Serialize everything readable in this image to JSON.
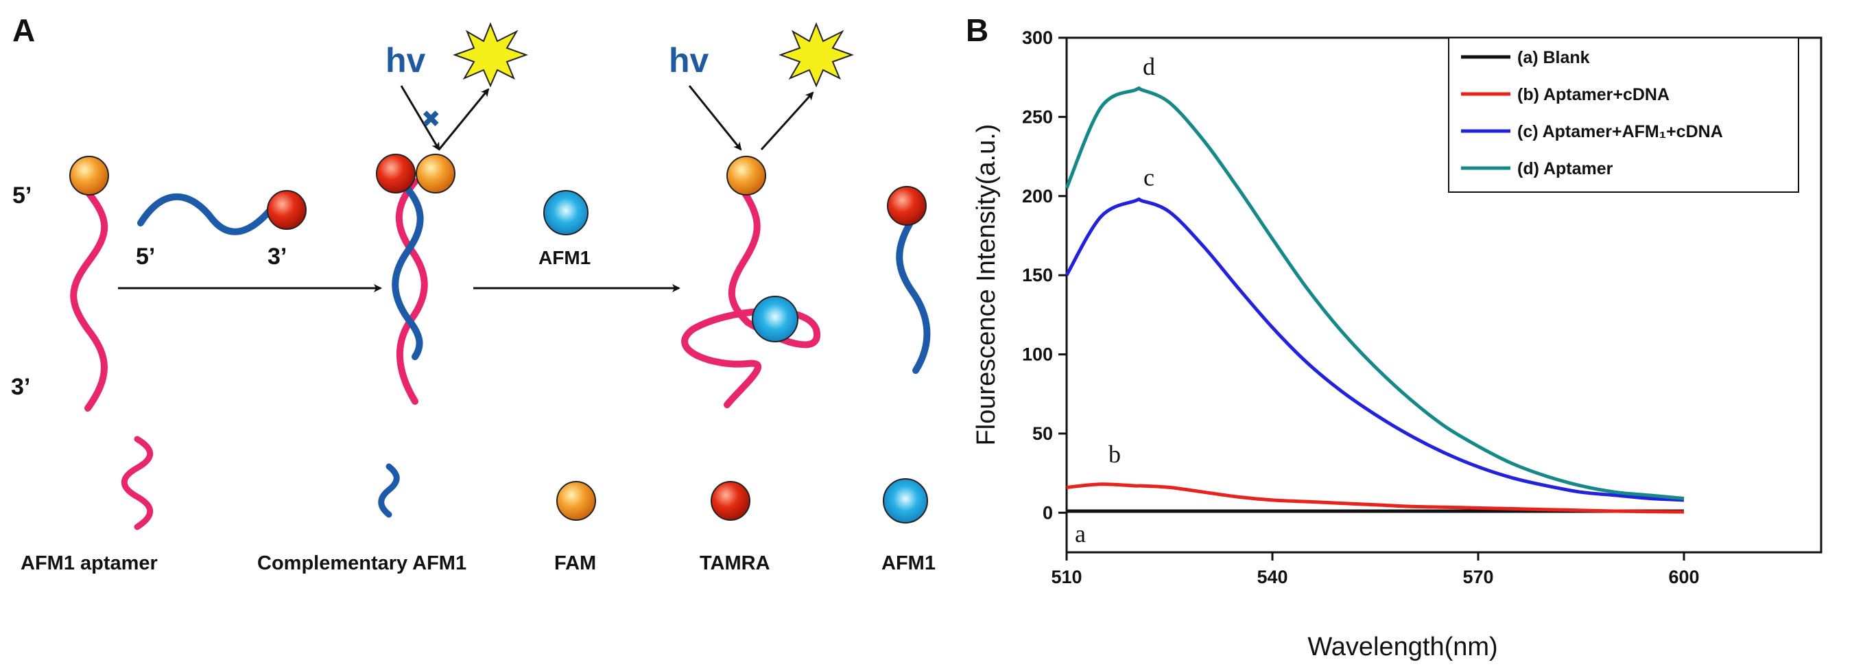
{
  "colors": {
    "aptamer": "#e8266b",
    "cdna": "#1d5aa8",
    "fam": "#f5a030",
    "tamra": "#e42d14",
    "afm1": "#20a4dc",
    "starburst": "#f5f01a",
    "hv": "#1f5a9e"
  },
  "panel_a": {
    "letter": "A",
    "hv_label": "hv",
    "blocked_mark": "✖",
    "step1": {
      "five_prime": "5’",
      "three_prime": "3’"
    },
    "cdna_labels": {
      "five_prime": "5’",
      "three_prime": "3’"
    },
    "arrow2_label": "AFM1",
    "legend": {
      "aptamer_label": "AFM1 aptamer",
      "complementary_label": "Complementary AFM1",
      "fam_label": "FAM",
      "tamra_label": "TAMRA",
      "afm1_label": "AFM1"
    }
  },
  "chart_data": {
    "type": "line",
    "panel_letter": "B",
    "xlabel": "Wavelength(nm)",
    "ylabel": "Flourescence Intensity(a.u.)",
    "xlim": [
      510,
      620
    ],
    "ylim": [
      -25,
      300
    ],
    "xticks": [
      510,
      540,
      570,
      600
    ],
    "yticks": [
      0,
      50,
      100,
      150,
      200,
      250,
      300
    ],
    "x": [
      510,
      515,
      520,
      521,
      525,
      530,
      535,
      540,
      545,
      550,
      555,
      560,
      565,
      570,
      575,
      580,
      585,
      590,
      595,
      600
    ],
    "series": [
      {
        "id": "a",
        "name": "(a) Blank",
        "color": "#111111",
        "curve_label": "a",
        "values": [
          1,
          1,
          1,
          1,
          1,
          1,
          1,
          1,
          1,
          1,
          1,
          1,
          1,
          1,
          1,
          1,
          1,
          1,
          1,
          1
        ]
      },
      {
        "id": "b",
        "name": "(b) Aptamer+cDNA",
        "color": "#e8231c",
        "curve_label": "b",
        "values": [
          16,
          18,
          17,
          17,
          16,
          13,
          10,
          8,
          7,
          6,
          5,
          4,
          3.5,
          3,
          2.5,
          2,
          1.5,
          1,
          0.7,
          0.5
        ]
      },
      {
        "id": "c",
        "name": "(c) Aptamer+AFM₁+cDNA",
        "color": "#2222dd",
        "curve_label": "c",
        "values": [
          150,
          187,
          197,
          197,
          190,
          168,
          142,
          117,
          95,
          77,
          62,
          49,
          38,
          29,
          22,
          17,
          13,
          11,
          9,
          8
        ]
      },
      {
        "id": "d",
        "name": "(d) Aptamer",
        "color": "#15888a",
        "curve_label": "d",
        "values": [
          205,
          256,
          267,
          267,
          259,
          235,
          205,
          173,
          142,
          115,
          92,
          72,
          55,
          42,
          31,
          23,
          17,
          13,
          11,
          9
        ]
      }
    ]
  }
}
